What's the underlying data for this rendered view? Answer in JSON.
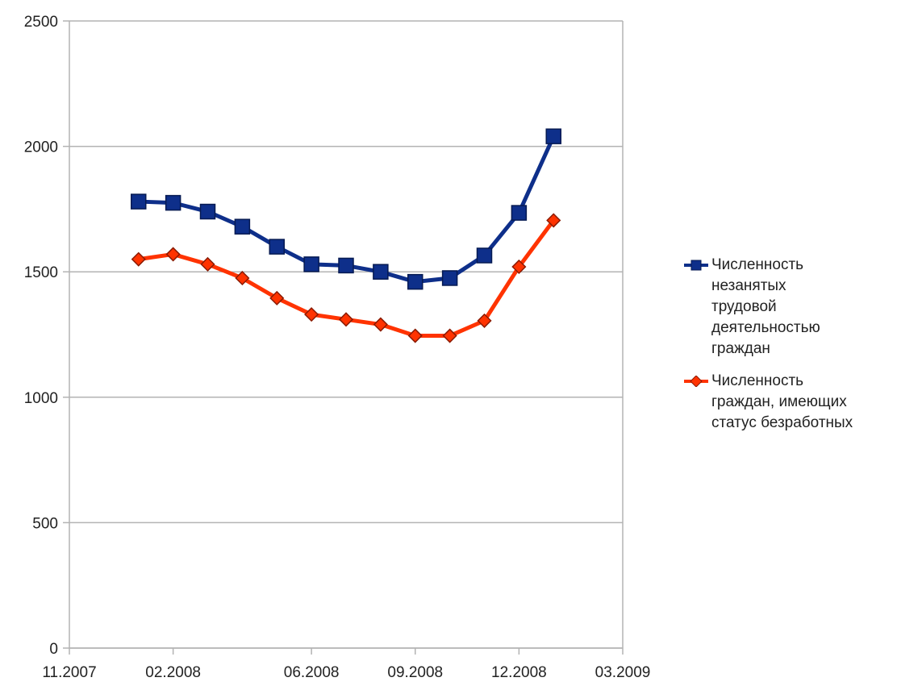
{
  "chart_data": {
    "type": "line",
    "x_axis": {
      "type": "date",
      "range": [
        "2007-11",
        "2009-03"
      ],
      "ticks": [
        "2007-11",
        "2008-02",
        "2008-06",
        "2008-09",
        "2008-12",
        "2009-03"
      ],
      "tick_labels": [
        "11.2007",
        "02.2008",
        "06.2008",
        "09.2008",
        "12.2008",
        "03.2009"
      ]
    },
    "y_axis": {
      "range": [
        0,
        2500
      ],
      "ticks": [
        0,
        500,
        1000,
        1500,
        2000,
        2500
      ],
      "tick_labels": [
        "0",
        "500",
        "1000",
        "1500",
        "2000",
        "2500"
      ]
    },
    "grid": "horizontal",
    "legend_position": "right",
    "x": [
      "2008-01",
      "2008-02",
      "2008-03",
      "2008-04",
      "2008-05",
      "2008-06",
      "2008-07",
      "2008-08",
      "2008-09",
      "2008-10",
      "2008-11",
      "2008-12",
      "2009-01"
    ],
    "series": [
      {
        "name": "Численность незанятых трудовой деятельностью граждан",
        "legend_lines": [
          "Численность",
          "незанятых",
          "трудовой",
          "деятельностью",
          "граждан"
        ],
        "color": "#0e2f8a",
        "marker": "square",
        "values": [
          1780,
          1775,
          1740,
          1680,
          1600,
          1530,
          1525,
          1500,
          1460,
          1475,
          1565,
          1735,
          2040
        ]
      },
      {
        "name": "Численность граждан, имеющих статус безработных",
        "legend_lines": [
          "Численность",
          "граждан, имеющих",
          "статус безработных"
        ],
        "color": "#ff3300",
        "marker": "diamond",
        "values": [
          1550,
          1570,
          1530,
          1475,
          1395,
          1330,
          1310,
          1290,
          1245,
          1245,
          1305,
          1520,
          1705
        ]
      }
    ]
  }
}
